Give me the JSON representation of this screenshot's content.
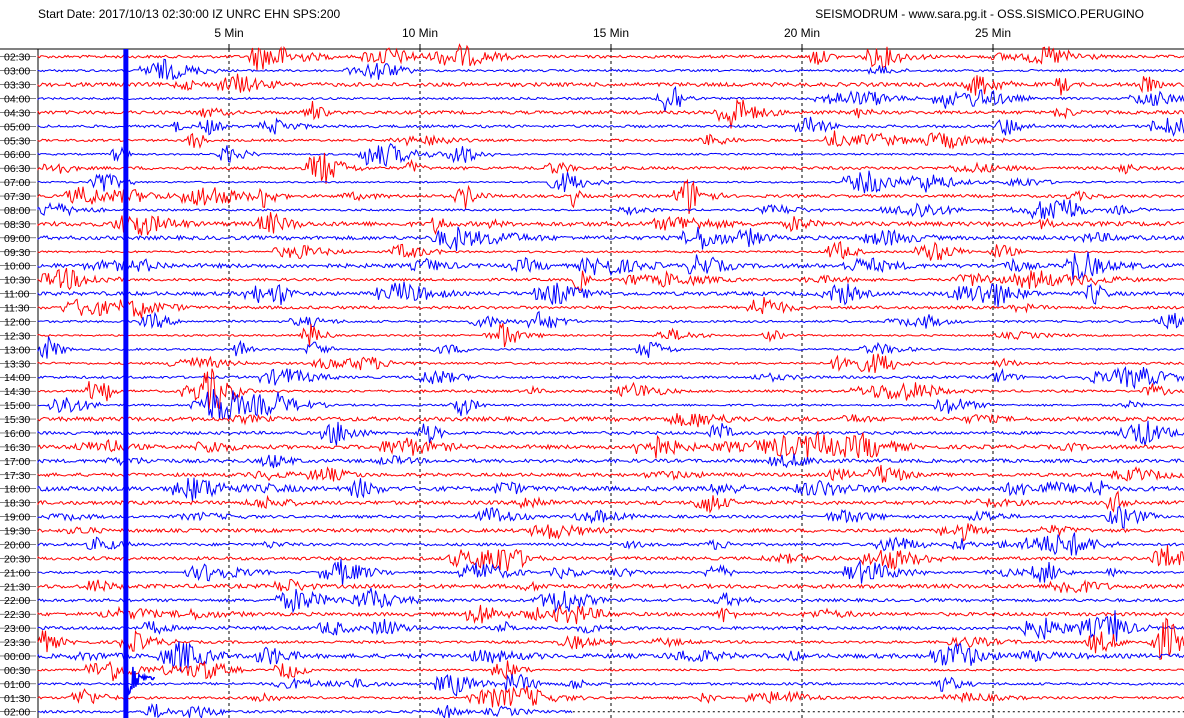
{
  "header": {
    "left": "Start Date: 2017/10/13 02:30:00 IZ UNRC  EHN SPS:200",
    "right": "SEISMODRUM - www.sara.pg.it - OSS.SISMICO.PERUGINO"
  },
  "chart_data": {
    "type": "line",
    "minute_ticks": [
      5,
      10,
      15,
      20,
      25
    ],
    "minute_labels": [
      "5 Min",
      "10 Min",
      "15 Min",
      "20 Min",
      "25 Min"
    ],
    "x_range_minutes": [
      0,
      30
    ],
    "row_labels": [
      "02:30",
      "03:00",
      "03:30",
      "04:00",
      "04:30",
      "05:00",
      "05:30",
      "06:00",
      "06:30",
      "07:00",
      "07:30",
      "08:00",
      "08:30",
      "09:00",
      "09:30",
      "10:00",
      "10:30",
      "11:00",
      "11:30",
      "12:00",
      "12:30",
      "13:00",
      "13:30",
      "14:00",
      "14:30",
      "15:00",
      "15:30",
      "16:00",
      "16:30",
      "17:00",
      "17:30",
      "18:00",
      "18:30",
      "19:00",
      "19:30",
      "20:00",
      "20:30",
      "21:00",
      "21:30",
      "22:00",
      "22:30",
      "23:00",
      "23:30",
      "00:00",
      "00:30",
      "01:00",
      "01:30",
      "02:00"
    ],
    "trace_colors": [
      "#ff0000",
      "#0000ff"
    ],
    "last_row_end_minute": 14.0,
    "grid": "dashed vertical lines every 5 min",
    "major_event": {
      "minute": 2.3,
      "start_row": 0,
      "end_row": 47
    }
  }
}
